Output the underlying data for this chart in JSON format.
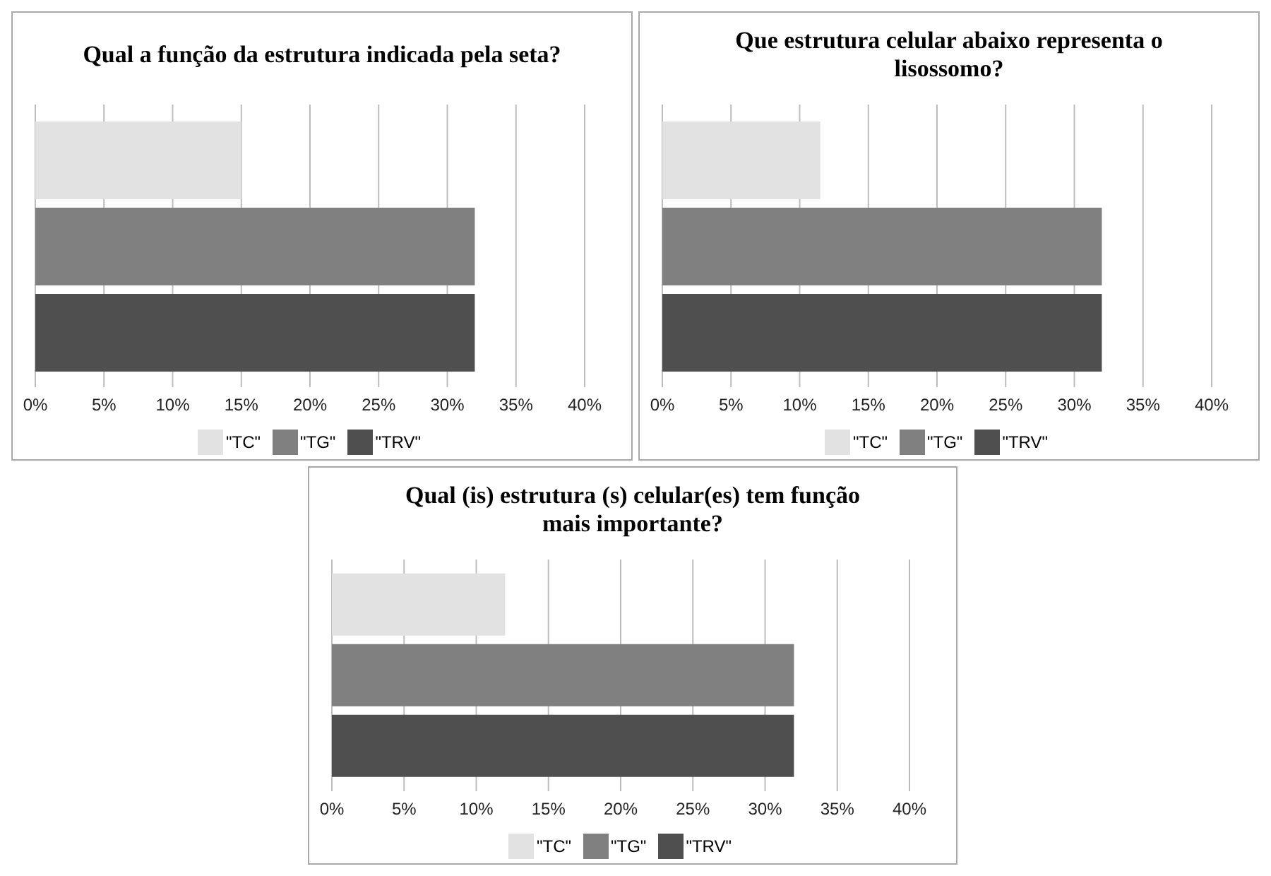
{
  "chart_data": [
    {
      "type": "bar",
      "orientation": "horizontal",
      "title": "Qual a função da estrutura indicada pela seta?",
      "categories": [
        null
      ],
      "series": [
        {
          "name": "\"TC\"",
          "color": "#e2e2e2",
          "values": [
            15
          ]
        },
        {
          "name": "\"TG\"",
          "color": "#808080",
          "values": [
            32
          ]
        },
        {
          "name": "\"TRV\"",
          "color": "#4f4f4f",
          "values": [
            32
          ]
        }
      ],
      "xlim": [
        0,
        40
      ],
      "xticks": [
        {
          "value": 0,
          "label": "0%"
        },
        {
          "value": 5,
          "label": "5%"
        },
        {
          "value": 10,
          "label": "10%"
        },
        {
          "value": 15,
          "label": "15%"
        },
        {
          "value": 20,
          "label": "20%"
        },
        {
          "value": 25,
          "label": "25%"
        },
        {
          "value": 30,
          "label": "30%"
        },
        {
          "value": 35,
          "label": "35%"
        },
        {
          "value": 40,
          "label": "40%"
        }
      ],
      "grid": "x",
      "legend": "bottom",
      "tick_labels": "x"
    },
    {
      "type": "bar",
      "orientation": "horizontal",
      "title": "Que estrutura celular abaixo representa o lisossomo?",
      "categories": [
        null
      ],
      "series": [
        {
          "name": "\"TC\"",
          "color": "#e2e2e2",
          "values": [
            11.5
          ]
        },
        {
          "name": "\"TG\"",
          "color": "#808080",
          "values": [
            32
          ]
        },
        {
          "name": "\"TRV\"",
          "color": "#4f4f4f",
          "values": [
            32
          ]
        }
      ],
      "xlim": [
        0,
        40
      ],
      "xticks": [
        {
          "value": 0,
          "label": "0%"
        },
        {
          "value": 5,
          "label": "5%"
        },
        {
          "value": 10,
          "label": "10%"
        },
        {
          "value": 15,
          "label": "15%"
        },
        {
          "value": 20,
          "label": "20%"
        },
        {
          "value": 25,
          "label": "25%"
        },
        {
          "value": 30,
          "label": "30%"
        },
        {
          "value": 35,
          "label": "35%"
        },
        {
          "value": 40,
          "label": "40%"
        }
      ],
      "grid": "x",
      "legend": "bottom",
      "tick_labels": "x"
    },
    {
      "type": "bar",
      "orientation": "horizontal",
      "title": "Qual (is) estrutura (s) celular(es) tem função mais importante?",
      "categories": [
        null
      ],
      "series": [
        {
          "name": "\"TC\"",
          "color": "#e2e2e2",
          "values": [
            12
          ]
        },
        {
          "name": "\"TG\"",
          "color": "#808080",
          "values": [
            32
          ]
        },
        {
          "name": "\"TRV\"",
          "color": "#4f4f4f",
          "values": [
            32
          ]
        }
      ],
      "xlim": [
        0,
        40
      ],
      "xticks": [
        {
          "value": 0,
          "label": "0%"
        },
        {
          "value": 5,
          "label": "5%"
        },
        {
          "value": 10,
          "label": "10%"
        },
        {
          "value": 15,
          "label": "15%"
        },
        {
          "value": 20,
          "label": "20%"
        },
        {
          "value": 25,
          "label": "25%"
        },
        {
          "value": 30,
          "label": "30%"
        },
        {
          "value": 35,
          "label": "35%"
        },
        {
          "value": 40,
          "label": "40%"
        }
      ],
      "grid": "x",
      "legend": "bottom",
      "tick_labels": "x"
    }
  ]
}
